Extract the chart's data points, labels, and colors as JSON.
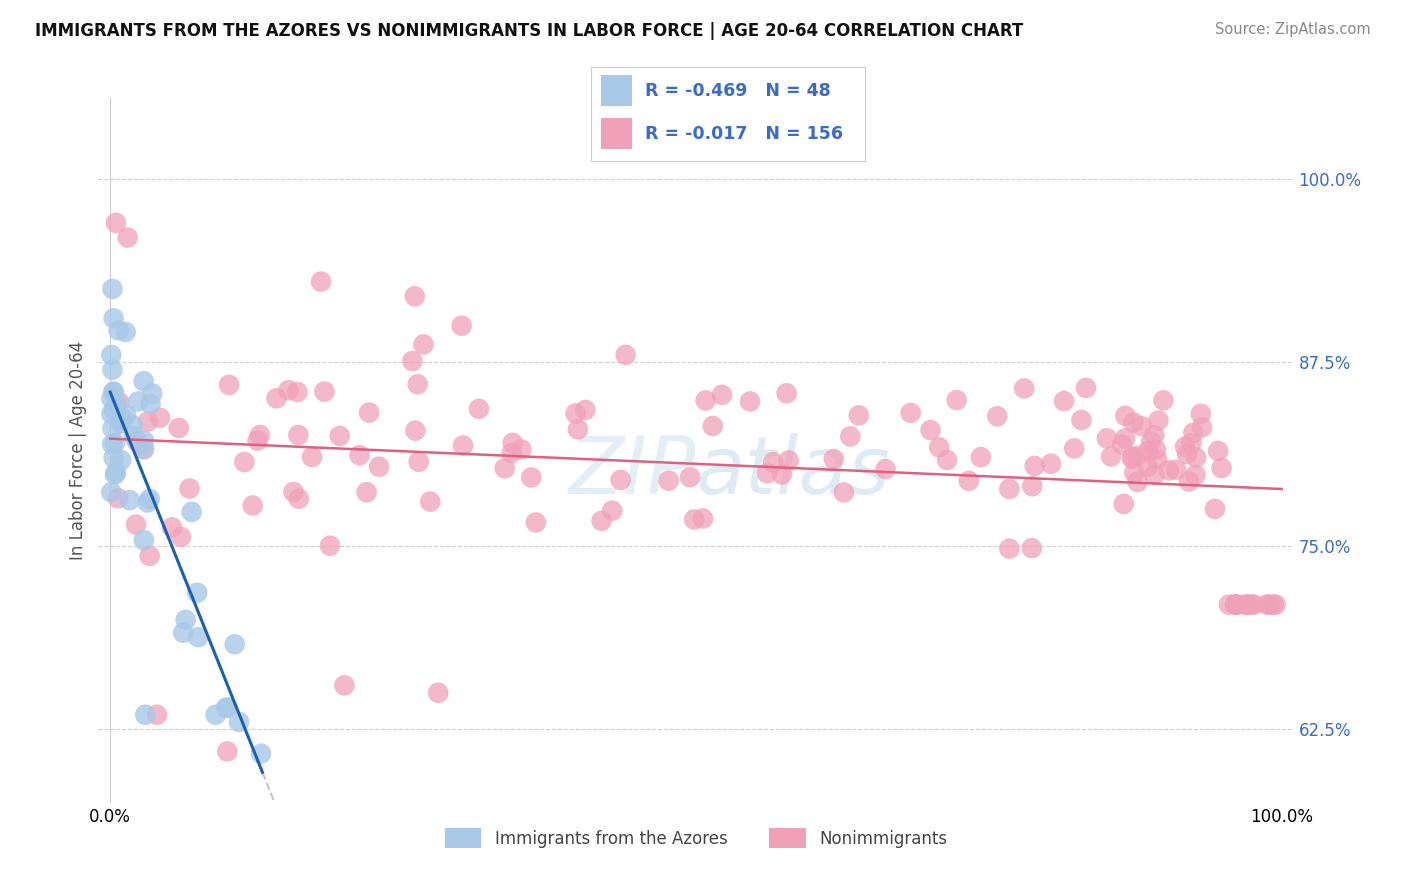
{
  "title": "IMMIGRANTS FROM THE AZORES VS NONIMMIGRANTS IN LABOR FORCE | AGE 20-64 CORRELATION CHART",
  "source": "Source: ZipAtlas.com",
  "ylabel": "In Labor Force | Age 20-64",
  "legend_R_blue": "-0.469",
  "legend_N_blue": "48",
  "legend_R_pink": "-0.017",
  "legend_N_pink": "156",
  "blue_color": "#a8c8e8",
  "pink_color": "#f0a0b8",
  "blue_line_color": "#1a5fb4",
  "pink_line_color": "#e06080",
  "blue_marker_edge": "none",
  "pink_marker_edge": "none",
  "background_color": "#ffffff",
  "grid_color": "#cccccc",
  "title_fontsize": 12,
  "ytick_color": "#3a6bc9",
  "watermark_color": "#cce0f0"
}
